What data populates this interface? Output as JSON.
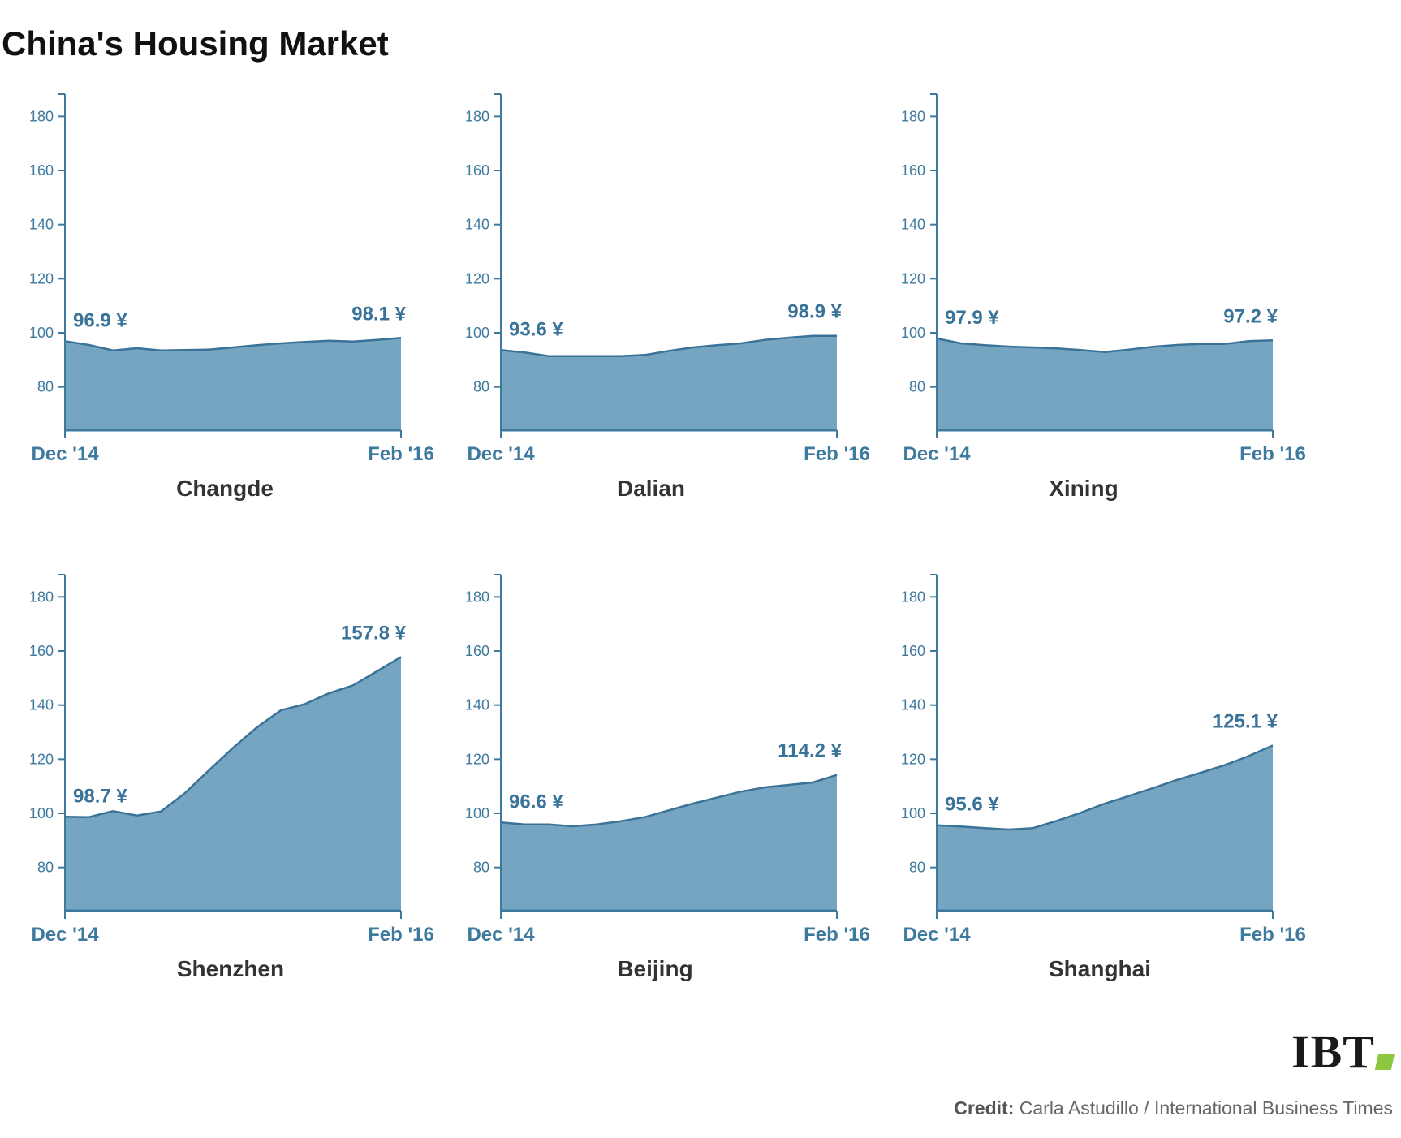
{
  "title": "China's Housing Market",
  "credit": {
    "label": "Credit:",
    "text": "Carla Astudillo / International Business Times"
  },
  "logo": {
    "text": "IBT",
    "accent_color": "#8dc63f"
  },
  "colors": {
    "axis": "#3d7a9e",
    "fill": "#75a5c0",
    "line": "#3b7398",
    "label": "#3a7399",
    "city": "#333333"
  },
  "chart_data": [
    {
      "type": "area",
      "name": "Changde",
      "x_start_label": "Dec '14",
      "x_end_label": "Feb '16",
      "yticks": [
        80,
        100,
        120,
        140,
        160,
        180
      ],
      "ylim": [
        64,
        188
      ],
      "values": [
        96.9,
        95.5,
        93.5,
        94.3,
        93.5,
        93.6,
        93.8,
        94.6,
        95.4,
        96.1,
        96.6,
        97.1,
        96.8,
        97.4,
        98.1
      ],
      "start_label": "96.9 ¥",
      "end_label": "98.1 ¥"
    },
    {
      "type": "area",
      "name": "Dalian",
      "x_start_label": "Dec '14",
      "x_end_label": "Feb '16",
      "yticks": [
        80,
        100,
        120,
        140,
        160,
        180
      ],
      "ylim": [
        64,
        188
      ],
      "values": [
        93.6,
        92.7,
        91.4,
        91.4,
        91.4,
        91.4,
        91.8,
        93.3,
        94.6,
        95.4,
        96.1,
        97.4,
        98.2,
        98.9,
        98.9
      ],
      "start_label": "93.6 ¥",
      "end_label": "98.9 ¥"
    },
    {
      "type": "area",
      "name": "Xining",
      "x_start_label": "Dec '14",
      "x_end_label": "Feb '16",
      "yticks": [
        80,
        100,
        120,
        140,
        160,
        180
      ],
      "ylim": [
        64,
        188
      ],
      "values": [
        97.9,
        96.1,
        95.4,
        94.9,
        94.6,
        94.2,
        93.6,
        92.9,
        93.8,
        94.8,
        95.5,
        95.9,
        95.9,
        96.9,
        97.2
      ],
      "start_label": "97.9 ¥",
      "end_label": "97.2 ¥"
    },
    {
      "type": "area",
      "name": "Shenzhen",
      "x_start_label": "Dec '14",
      "x_end_label": "Feb '16",
      "yticks": [
        80,
        100,
        120,
        140,
        160,
        180
      ],
      "ylim": [
        64,
        188
      ],
      "values": [
        98.7,
        98.6,
        100.8,
        99.2,
        100.7,
        107.5,
        115.9,
        124.2,
        131.8,
        138.1,
        140.4,
        144.4,
        147.3,
        152.5,
        157.8
      ],
      "start_label": "98.7 ¥",
      "end_label": "157.8 ¥"
    },
    {
      "type": "area",
      "name": "Beijing",
      "x_start_label": "Dec '14",
      "x_end_label": "Feb '16",
      "yticks": [
        80,
        100,
        120,
        140,
        160,
        180
      ],
      "ylim": [
        64,
        188
      ],
      "values": [
        96.6,
        95.9,
        95.9,
        95.2,
        95.9,
        97.1,
        98.6,
        101.1,
        103.6,
        105.8,
        108.0,
        109.6,
        110.5,
        111.4,
        114.2
      ],
      "start_label": "96.6 ¥",
      "end_label": "114.2 ¥"
    },
    {
      "type": "area",
      "name": "Shanghai",
      "x_start_label": "Dec '14",
      "x_end_label": "Feb '16",
      "yticks": [
        80,
        100,
        120,
        140,
        160,
        180
      ],
      "ylim": [
        64,
        188
      ],
      "values": [
        95.6,
        95.1,
        94.5,
        94.0,
        94.5,
        97.2,
        100.2,
        103.6,
        106.4,
        109.3,
        112.3,
        115.0,
        117.8,
        121.2,
        125.1
      ],
      "start_label": "95.6 ¥",
      "end_label": "125.1 ¥"
    }
  ]
}
